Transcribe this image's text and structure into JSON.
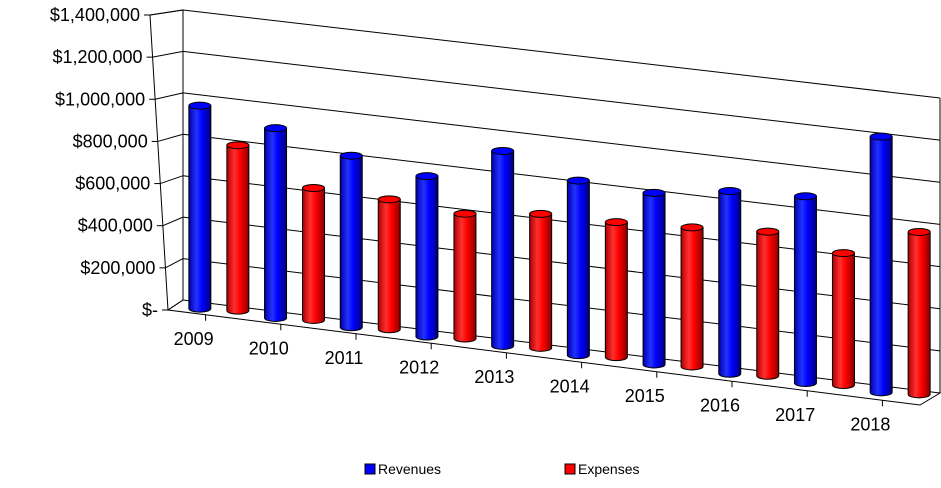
{
  "chart_data": {
    "type": "bar",
    "categories": [
      "2009",
      "2010",
      "2011",
      "2012",
      "2013",
      "2014",
      "2015",
      "2016",
      "2017",
      "2018"
    ],
    "series": [
      {
        "name": "Revenues",
        "color": "#0000ff",
        "values": [
          1000000,
          935000,
          845000,
          790000,
          960000,
          860000,
          845000,
          900000,
          920000,
          1260000
        ]
      },
      {
        "name": "Expenses",
        "color": "#ff0000",
        "values": [
          815000,
          650000,
          640000,
          615000,
          660000,
          665000,
          685000,
          710000,
          650000,
          800000
        ]
      }
    ],
    "y_tick_labels": [
      "$-",
      "$200,000",
      "$400,000",
      "$600,000",
      "$800,000",
      "$1,000,000",
      "$1,200,000",
      "$1,400,000"
    ],
    "ylim": [
      0,
      1400000
    ],
    "grid": true,
    "legend_position": "bottom",
    "style": "3d-cylinder"
  }
}
